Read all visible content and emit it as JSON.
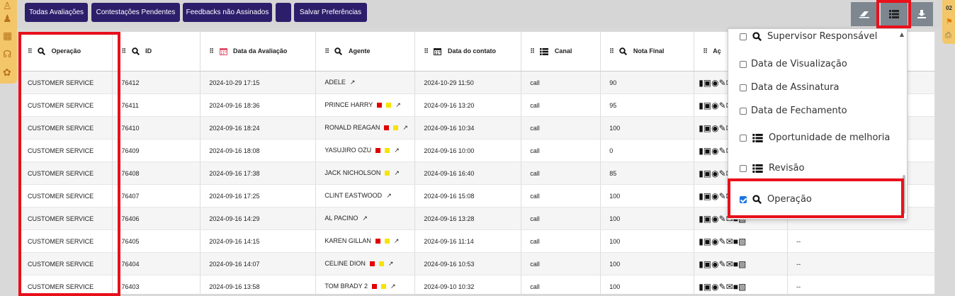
{
  "toolbar": {
    "btn_all": "Todas Avaliações",
    "btn_contests": "Contestações Pendentes",
    "btn_unsigned": "Feedbacks não Assinados",
    "btn_save": "Salvar Preferências"
  },
  "right_rail": {
    "count": "02"
  },
  "table": {
    "headers": {
      "operacao": "Operação",
      "id": "ID",
      "data_avaliacao": "Data da Avaliação",
      "agente": "Agente",
      "data_contato": "Data do contato",
      "canal": "Canal",
      "nota_final": "Nota Final",
      "acoes": "Aç"
    },
    "rows": [
      {
        "operacao": "CUSTOMER SERVICE",
        "id": "76412",
        "data_avaliacao": "2024-10-29 17:15",
        "agente": "ADELE",
        "flags": [],
        "data_contato": "2024-10-29 11:50",
        "canal": "call",
        "nota": "90",
        "extra": ""
      },
      {
        "operacao": "CUSTOMER SERVICE",
        "id": "76411",
        "data_avaliacao": "2024-09-16 18:36",
        "agente": "PRINCE HARRY",
        "flags": [
          "red",
          "yellow"
        ],
        "data_contato": "2024-09-16 13:20",
        "canal": "call",
        "nota": "95",
        "extra": ""
      },
      {
        "operacao": "CUSTOMER SERVICE",
        "id": "76410",
        "data_avaliacao": "2024-09-16 18:24",
        "agente": "RONALD REAGAN",
        "flags": [
          "red",
          "yellow"
        ],
        "data_contato": "2024-09-16 10:34",
        "canal": "call",
        "nota": "100",
        "extra": ""
      },
      {
        "operacao": "CUSTOMER SERVICE",
        "id": "76409",
        "data_avaliacao": "2024-09-16 18:08",
        "agente": "YASUJIRO OZU",
        "flags": [
          "red",
          "yellow"
        ],
        "data_contato": "2024-09-16 10:00",
        "canal": "call",
        "nota": "0",
        "extra": ""
      },
      {
        "operacao": "CUSTOMER SERVICE",
        "id": "76408",
        "data_avaliacao": "2024-09-16 17:38",
        "agente": "JACK NICHOLSON",
        "flags": [
          "yellow"
        ],
        "data_contato": "2024-09-16 16:40",
        "canal": "call",
        "nota": "85",
        "extra": ""
      },
      {
        "operacao": "CUSTOMER SERVICE",
        "id": "76407",
        "data_avaliacao": "2024-09-16 17:25",
        "agente": "CLINT EASTWOOD",
        "flags": [],
        "data_contato": "2024-09-16 15:08",
        "canal": "call",
        "nota": "100",
        "extra": ""
      },
      {
        "operacao": "CUSTOMER SERVICE",
        "id": "76406",
        "data_avaliacao": "2024-09-16 14:29",
        "agente": "AL PACINO",
        "flags": [],
        "data_contato": "2024-09-16 13:28",
        "canal": "call",
        "nota": "100",
        "extra": ""
      },
      {
        "operacao": "CUSTOMER SERVICE",
        "id": "76405",
        "data_avaliacao": "2024-09-16 14:15",
        "agente": "KAREN GILLAN",
        "flags": [
          "red",
          "yellow"
        ],
        "data_contato": "2024-09-16 11:14",
        "canal": "call",
        "nota": "100",
        "extra": "--"
      },
      {
        "operacao": "CUSTOMER SERVICE",
        "id": "76404",
        "data_avaliacao": "2024-09-16 14:07",
        "agente": "CELINE DION",
        "flags": [
          "red",
          "yellow"
        ],
        "data_contato": "2024-09-16 10:53",
        "canal": "call",
        "nota": "100",
        "extra": "--"
      },
      {
        "operacao": "CUSTOMER SERVICE",
        "id": "76403",
        "data_avaliacao": "2024-09-16 13:58",
        "agente": "TOM BRADY 2",
        "flags": [
          "red",
          "yellow"
        ],
        "data_contato": "2024-09-10 10:32",
        "canal": "call",
        "nota": "100",
        "extra": "--"
      }
    ]
  },
  "column_menu": {
    "items": [
      {
        "label": "Supervisor Responsável",
        "icon": "search-icon",
        "checked": false
      },
      {
        "label": "Data de Visualização",
        "icon": "",
        "checked": false
      },
      {
        "label": "Data de Assinatura",
        "icon": "",
        "checked": false
      },
      {
        "label": "Data de Fechamento",
        "icon": "",
        "checked": false
      },
      {
        "label": "Oportunidade de melhoria",
        "icon": "list-icon",
        "checked": false
      },
      {
        "label": "Revisão",
        "icon": "list-icon",
        "checked": false
      },
      {
        "label": "Operação",
        "icon": "search-icon",
        "checked": true
      }
    ]
  },
  "colors": {
    "button_bg": "#2d1e6b",
    "highlight": "#e8101b",
    "flag_red": "#e00000",
    "flag_yellow": "#f6e400"
  }
}
